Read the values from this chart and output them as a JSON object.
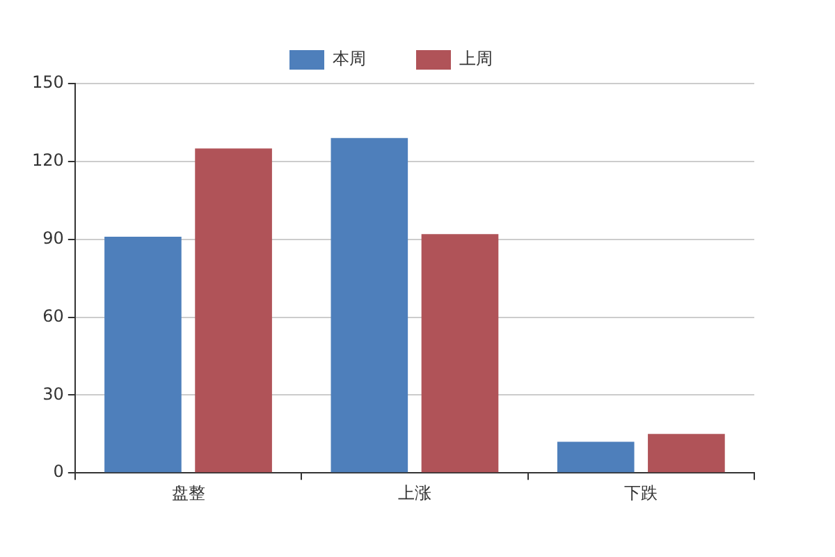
{
  "chart_data": {
    "type": "bar",
    "categories": [
      "盘整",
      "上涨",
      "下跌"
    ],
    "series": [
      {
        "name": "本周",
        "color": "#4e7fbb",
        "values": [
          91,
          129,
          12
        ]
      },
      {
        "name": "上周",
        "color": "#b05358",
        "values": [
          125,
          92,
          15
        ]
      }
    ],
    "ylim": [
      0,
      150
    ],
    "yticks": [
      0,
      30,
      60,
      90,
      120,
      150
    ],
    "grid": "y",
    "legend": "top"
  }
}
